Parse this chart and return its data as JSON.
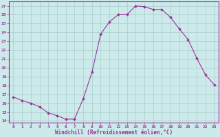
{
  "x": [
    0,
    1,
    2,
    3,
    4,
    5,
    6,
    7,
    8,
    9,
    10,
    11,
    12,
    13,
    14,
    15,
    16,
    17,
    18,
    19,
    20,
    21,
    22,
    23
  ],
  "y": [
    16.7,
    16.3,
    16.0,
    15.6,
    14.9,
    14.6,
    14.2,
    14.2,
    16.5,
    19.5,
    23.8,
    25.2,
    26.0,
    26.0,
    27.0,
    26.9,
    26.6,
    26.6,
    25.7,
    24.4,
    23.2,
    21.1,
    19.2,
    18.1
  ],
  "line_color": "#993399",
  "marker": "D",
  "marker_size": 2.0,
  "bg_color": "#cceaea",
  "grid_color": "#aacccc",
  "xlabel": "Windchill (Refroidissement éolien,°C)",
  "ylabel_ticks": [
    14,
    15,
    16,
    17,
    18,
    19,
    20,
    21,
    22,
    23,
    24,
    25,
    26,
    27
  ],
  "xlim": [
    -0.5,
    23.5
  ],
  "ylim": [
    13.8,
    27.5
  ],
  "xticks": [
    0,
    1,
    2,
    3,
    4,
    5,
    6,
    7,
    8,
    9,
    10,
    11,
    12,
    13,
    14,
    15,
    16,
    17,
    18,
    19,
    20,
    21,
    22,
    23
  ],
  "xtick_labels": [
    "0",
    "1",
    "2",
    "3",
    "4",
    "5",
    "6",
    "7",
    "8",
    "9",
    "10",
    "11",
    "12",
    "13",
    "14",
    "15",
    "16",
    "17",
    "18",
    "19",
    "20",
    "21",
    "22",
    "23"
  ]
}
